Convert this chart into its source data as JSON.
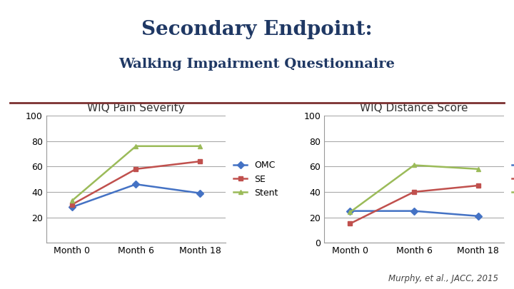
{
  "title_line1": "Secondary Endpoint:",
  "title_line2": "Walking Impairment Questionnaire",
  "divider_color": "#7B3030",
  "left_subtitle": "WIQ Pain Severity",
  "right_subtitle": "WIQ Distance Score",
  "x_labels": [
    "Month 0",
    "Month 6",
    "Month 18"
  ],
  "left": {
    "OMC": [
      28,
      46,
      39
    ],
    "SE": [
      30,
      58,
      64
    ],
    "Stent": [
      33,
      76,
      76
    ]
  },
  "right": {
    "OMC": [
      25,
      25,
      21
    ],
    "SE": [
      15,
      40,
      45
    ],
    "Stent": [
      24,
      61,
      58
    ]
  },
  "left_ylim": [
    0,
    100
  ],
  "left_yticks": [
    20,
    40,
    60,
    80,
    100
  ],
  "right_ylim": [
    0,
    100
  ],
  "right_yticks": [
    0,
    20,
    40,
    60,
    80,
    100
  ],
  "omc_color": "#4472C4",
  "se_color": "#C0504D",
  "stent_color": "#9BBB59",
  "omc_marker": "D",
  "se_marker": "s",
  "stent_marker": "^",
  "marker_size": 5,
  "line_width": 1.8,
  "subtitle_fontsize": 11,
  "tick_fontsize": 9,
  "legend_fontsize": 9,
  "citation": "Murphy, et al., JACC, 2015",
  "bg_color": "#FFFFFF",
  "grid_color": "#AAAAAA",
  "title_color": "#1F3864",
  "subtitle_color": "#333333"
}
